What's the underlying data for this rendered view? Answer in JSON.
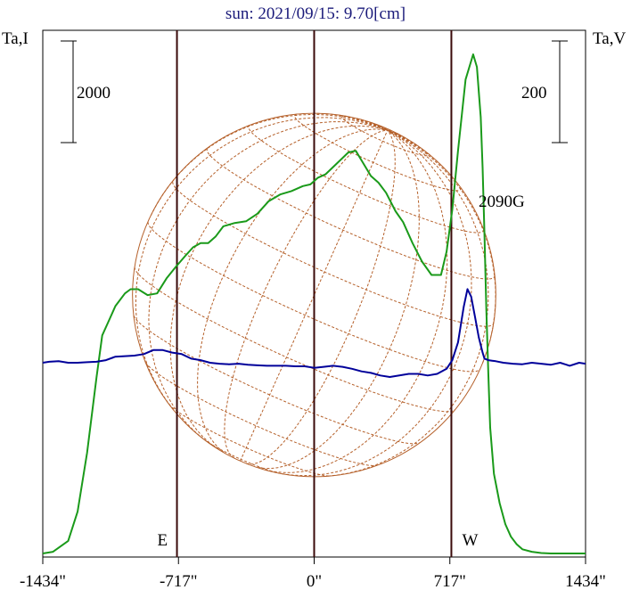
{
  "chart_data": {
    "type": "line",
    "title": "sun: 2021/09/15: 9.70[cm]",
    "left_axis_label": "Ta,I",
    "right_axis_label": "Ta,V",
    "left_scale_bar": "2000",
    "right_scale_bar": "200",
    "xlim": [
      -1434,
      1434
    ],
    "x_ticks": [
      {
        "value": -1434,
        "label": "-1434\""
      },
      {
        "value": -717,
        "label": "-717\""
      },
      {
        "value": 0,
        "label": "0\""
      },
      {
        "value": 717,
        "label": "717\""
      },
      {
        "value": 1434,
        "label": "1434\""
      }
    ],
    "limb_markers": [
      {
        "value": -725,
        "label": "E"
      },
      {
        "value": 0,
        "label": ""
      },
      {
        "value": 725,
        "label": "W"
      }
    ],
    "annotation": {
      "x": 1010,
      "text": "2090G"
    },
    "solar_disk_radius": 960,
    "series": [
      {
        "name": "I",
        "color": "#1a9a1a",
        "x": [
          -1434,
          -1380,
          -1300,
          -1250,
          -1200,
          -1150,
          -1120,
          -1080,
          -1050,
          -1000,
          -970,
          -930,
          -880,
          -830,
          -780,
          -730,
          -680,
          -640,
          -600,
          -560,
          -520,
          -480,
          -420,
          -360,
          -300,
          -240,
          -180,
          -120,
          -60,
          -20,
          20,
          60,
          120,
          180,
          220,
          260,
          300,
          340,
          380,
          430,
          470,
          520,
          570,
          620,
          670,
          700,
          730,
          760,
          800,
          840,
          860,
          880,
          890,
          900,
          910,
          920,
          930,
          950,
          980,
          1010,
          1040,
          1070,
          1100,
          1150,
          1200,
          1250,
          1300,
          1350,
          1434
        ],
        "y": [
          0,
          20,
          150,
          500,
          1200,
          2100,
          2600,
          2800,
          2950,
          3100,
          3150,
          3150,
          3080,
          3100,
          3280,
          3420,
          3550,
          3650,
          3700,
          3700,
          3780,
          3900,
          3940,
          3960,
          4050,
          4200,
          4280,
          4320,
          4380,
          4400,
          4480,
          4520,
          4650,
          4780,
          4800,
          4650,
          4500,
          4420,
          4300,
          4080,
          3950,
          3700,
          3480,
          3320,
          3320,
          3600,
          4100,
          4800,
          5650,
          5950,
          5800,
          5200,
          4600,
          3800,
          2900,
          2150,
          1500,
          950,
          600,
          350,
          200,
          110,
          50,
          20,
          5,
          0,
          0,
          0,
          0
        ]
      },
      {
        "name": "V",
        "color": "#00009a",
        "x": [
          -1434,
          -1400,
          -1350,
          -1300,
          -1250,
          -1200,
          -1150,
          -1100,
          -1050,
          -1000,
          -950,
          -900,
          -850,
          -800,
          -750,
          -700,
          -650,
          -600,
          -550,
          -500,
          -450,
          -400,
          -350,
          -300,
          -250,
          -200,
          -150,
          -100,
          -50,
          0,
          50,
          100,
          150,
          200,
          250,
          300,
          350,
          400,
          450,
          500,
          550,
          600,
          650,
          700,
          730,
          760,
          790,
          810,
          830,
          850,
          870,
          890,
          900,
          920,
          940,
          960,
          1000,
          1050,
          1100,
          1150,
          1200,
          1250,
          1300,
          1350,
          1400,
          1434
        ],
        "y": [
          0,
          2,
          3,
          0,
          0,
          1,
          2,
          5,
          12,
          13,
          14,
          17,
          25,
          25,
          20,
          17,
          8,
          5,
          0,
          -2,
          -3,
          -2,
          -4,
          -5,
          -6,
          -6,
          -6,
          -7,
          -7,
          -10,
          -8,
          -6,
          -8,
          -12,
          -17,
          -20,
          -25,
          -28,
          -25,
          -22,
          -22,
          -25,
          -22,
          -12,
          5,
          40,
          110,
          145,
          130,
          90,
          50,
          20,
          8,
          5,
          4,
          3,
          0,
          -2,
          -3,
          0,
          -2,
          -4,
          0,
          -6,
          0,
          -2
        ]
      }
    ]
  }
}
